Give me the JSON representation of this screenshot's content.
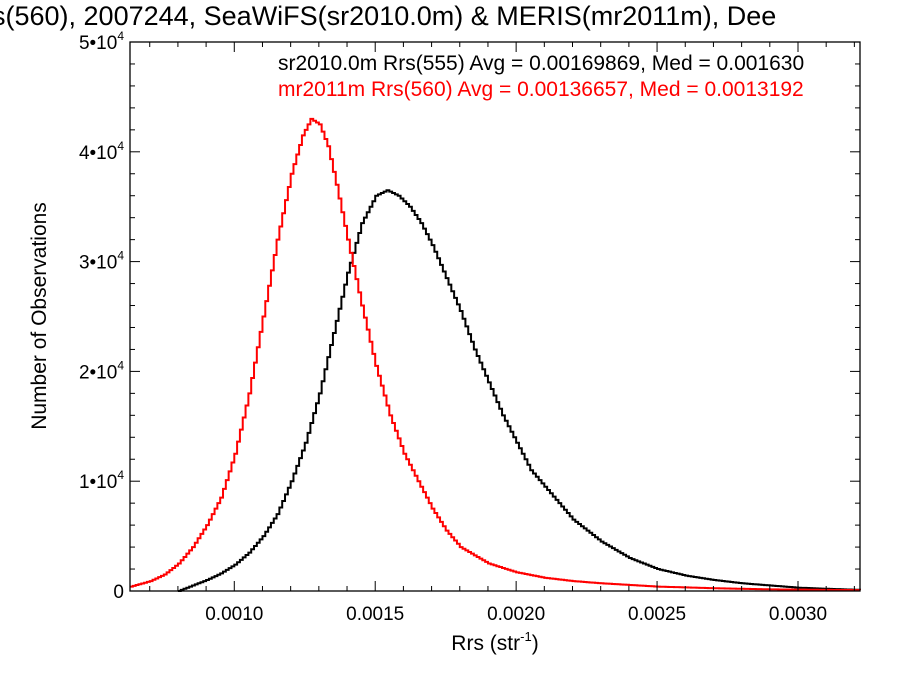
{
  "chart_data": {
    "type": "line",
    "title": "s(560), 2007244, SeaWiFS(sr2010.0m) & MERIS(mr2011m), Dee",
    "xlabel": "Rrs (str",
    "xlabel_sup": "-1",
    "xlabel_close": ")",
    "ylabel": "Number of Observations",
    "xlim": [
      0.00063,
      0.00322
    ],
    "ylim": [
      0,
      50000
    ],
    "grid": false,
    "x_ticks": [
      {
        "value": 0.001,
        "label": "0.0010"
      },
      {
        "value": 0.0015,
        "label": "0.0015"
      },
      {
        "value": 0.002,
        "label": "0.0020"
      },
      {
        "value": 0.0025,
        "label": "0.0025"
      },
      {
        "value": 0.003,
        "label": "0.0030"
      }
    ],
    "y_ticks": [
      {
        "value": 0,
        "label": "0",
        "exp": ""
      },
      {
        "value": 10000,
        "label": "1•10",
        "exp": "4"
      },
      {
        "value": 20000,
        "label": "2•10",
        "exp": "4"
      },
      {
        "value": 30000,
        "label": "3•10",
        "exp": "4"
      },
      {
        "value": 40000,
        "label": "4•10",
        "exp": "4"
      },
      {
        "value": 50000,
        "label": "5•10",
        "exp": "4"
      }
    ],
    "series": [
      {
        "name": "sr2010.0m Rrs(555)",
        "legend_text": "sr2010.0m Rrs(555) Avg = 0.00169869, Med = 0.001630",
        "color": "#000000",
        "points": [
          [
            0.0008,
            0
          ],
          [
            0.00085,
            500
          ],
          [
            0.0009,
            1000
          ],
          [
            0.00095,
            1600
          ],
          [
            0.001,
            2400
          ],
          [
            0.00105,
            3500
          ],
          [
            0.0011,
            5000
          ],
          [
            0.00115,
            7000
          ],
          [
            0.0012,
            10000
          ],
          [
            0.00125,
            13500
          ],
          [
            0.0013,
            18000
          ],
          [
            0.00135,
            23500
          ],
          [
            0.0014,
            29000
          ],
          [
            0.00145,
            33500
          ],
          [
            0.0015,
            36000
          ],
          [
            0.00154,
            36500
          ],
          [
            0.00158,
            36000
          ],
          [
            0.00162,
            35000
          ],
          [
            0.00166,
            33500
          ],
          [
            0.0017,
            31500
          ],
          [
            0.00175,
            28500
          ],
          [
            0.0018,
            25500
          ],
          [
            0.00185,
            22000
          ],
          [
            0.0019,
            19000
          ],
          [
            0.00195,
            16000
          ],
          [
            0.002,
            13500
          ],
          [
            0.00205,
            11000
          ],
          [
            0.0021,
            9500
          ],
          [
            0.00215,
            8000
          ],
          [
            0.0022,
            6500
          ],
          [
            0.0023,
            4500
          ],
          [
            0.0024,
            3000
          ],
          [
            0.0025,
            2000
          ],
          [
            0.0026,
            1400
          ],
          [
            0.0027,
            1000
          ],
          [
            0.0028,
            700
          ],
          [
            0.0029,
            500
          ],
          [
            0.003,
            300
          ],
          [
            0.0031,
            200
          ],
          [
            0.00322,
            100
          ]
        ]
      },
      {
        "name": "mr2011m Rrs(560)",
        "legend_text": "mr2011m Rrs(560) Avg = 0.00136657, Med = 0.0013192",
        "color": "#ff0000",
        "points": [
          [
            0.00063,
            400
          ],
          [
            0.0007,
            900
          ],
          [
            0.00075,
            1500
          ],
          [
            0.0008,
            2500
          ],
          [
            0.00085,
            4000
          ],
          [
            0.0009,
            6000
          ],
          [
            0.00095,
            8500
          ],
          [
            0.001,
            12500
          ],
          [
            0.00105,
            18000
          ],
          [
            0.0011,
            25000
          ],
          [
            0.00115,
            32000
          ],
          [
            0.0012,
            38000
          ],
          [
            0.00124,
            41500
          ],
          [
            0.00127,
            43000
          ],
          [
            0.0013,
            42500
          ],
          [
            0.00133,
            40500
          ],
          [
            0.00136,
            37000
          ],
          [
            0.0014,
            32000
          ],
          [
            0.00145,
            26000
          ],
          [
            0.0015,
            20500
          ],
          [
            0.00155,
            16000
          ],
          [
            0.0016,
            12500
          ],
          [
            0.00165,
            10000
          ],
          [
            0.0017,
            7500
          ],
          [
            0.00175,
            5500
          ],
          [
            0.0018,
            4000
          ],
          [
            0.0019,
            2500
          ],
          [
            0.002,
            1700
          ],
          [
            0.0021,
            1200
          ],
          [
            0.0022,
            900
          ],
          [
            0.0023,
            700
          ],
          [
            0.0025,
            400
          ],
          [
            0.0027,
            250
          ],
          [
            0.0029,
            150
          ],
          [
            0.0031,
            100
          ],
          [
            0.00322,
            80
          ]
        ]
      }
    ]
  }
}
